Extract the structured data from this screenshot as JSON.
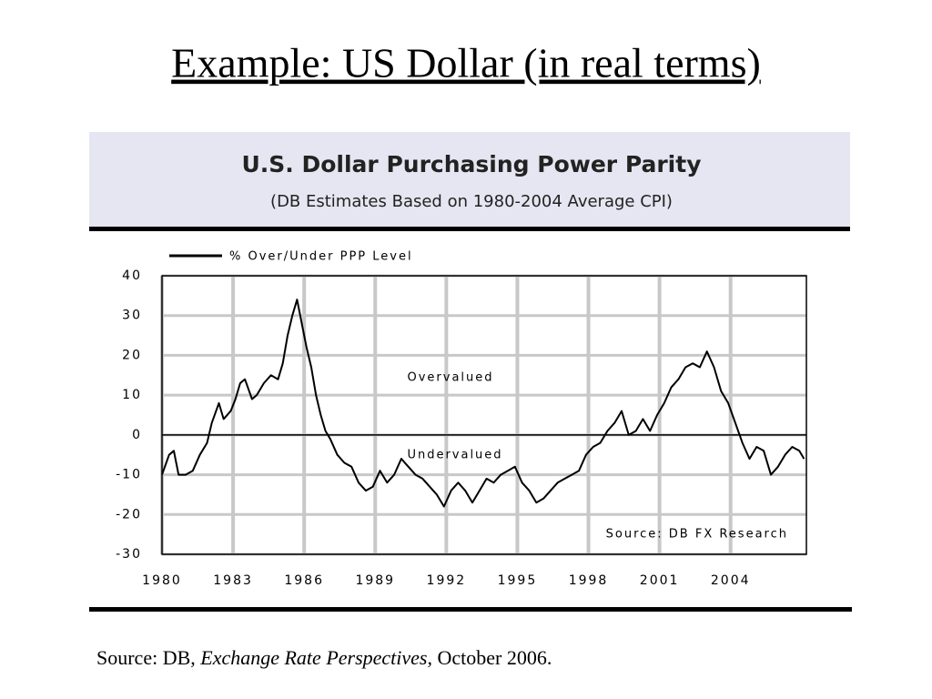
{
  "slide_title": "Example: US Dollar (in real terms)",
  "chart_data": {
    "type": "line",
    "title": "U.S. Dollar Purchasing Power Parity",
    "subtitle": "(DB Estimates Based on 1980-2004 Average CPI)",
    "annotations": [
      "Overvalued",
      "Undervalued",
      "Source: DB FX Research"
    ],
    "x": [
      1980.0,
      1980.3,
      1980.5,
      1980.7,
      1981.0,
      1981.3,
      1981.6,
      1981.9,
      1982.1,
      1982.4,
      1982.6,
      1982.9,
      1983.1,
      1983.3,
      1983.5,
      1983.8,
      1984.0,
      1984.3,
      1984.6,
      1984.9,
      1985.1,
      1985.3,
      1985.5,
      1985.7,
      1985.9,
      1986.1,
      1986.3,
      1986.5,
      1986.7,
      1986.9,
      1987.1,
      1987.4,
      1987.7,
      1988.0,
      1988.3,
      1988.6,
      1988.9,
      1989.2,
      1989.5,
      1989.8,
      1990.1,
      1990.4,
      1990.7,
      1991.0,
      1991.3,
      1991.6,
      1991.9,
      1992.2,
      1992.5,
      1992.8,
      1993.1,
      1993.4,
      1993.7,
      1994.0,
      1994.3,
      1994.6,
      1994.9,
      1995.2,
      1995.5,
      1995.8,
      1996.1,
      1996.4,
      1996.7,
      1997.0,
      1997.3,
      1997.6,
      1997.9,
      1998.2,
      1998.5,
      1998.8,
      1999.1,
      1999.4,
      1999.7,
      2000.0,
      2000.3,
      2000.6,
      2000.9,
      2001.2,
      2001.5,
      2001.8,
      2002.1,
      2002.4,
      2002.7,
      2003.0,
      2003.3,
      2003.6,
      2003.9,
      2004.2,
      2004.5,
      2004.8,
      2005.1,
      2005.4,
      2005.7,
      2006.0,
      2006.3,
      2006.6,
      2006.9,
      2007.1
    ],
    "series": [
      {
        "name": "% Over/Under PPP Level",
        "color": "#000000",
        "values": [
          -10,
          -5,
          -4,
          -10,
          -10,
          -9,
          -5,
          -2,
          3,
          8,
          4,
          6,
          9,
          13,
          14,
          9,
          10,
          13,
          15,
          14,
          18,
          25,
          30,
          34,
          28,
          22,
          17,
          10,
          5,
          1,
          -1,
          -5,
          -7,
          -8,
          -12,
          -14,
          -13,
          -9,
          -12,
          -10,
          -6,
          -8,
          -10,
          -11,
          -13,
          -15,
          -18,
          -14,
          -12,
          -14,
          -17,
          -14,
          -11,
          -12,
          -10,
          -9,
          -8,
          -12,
          -14,
          -17,
          -16,
          -14,
          -12,
          -11,
          -10,
          -9,
          -5,
          -3,
          -2,
          1,
          3,
          6,
          0,
          1,
          4,
          1,
          5,
          8,
          12,
          14,
          17,
          18,
          17,
          21,
          17,
          11,
          8,
          3,
          -2,
          -6,
          -3,
          -4,
          -10,
          -8,
          -5,
          -3,
          -4,
          -6
        ]
      }
    ],
    "xlim": [
      1980,
      2007.2
    ],
    "xticks": [
      1980,
      1983,
      1986,
      1989,
      1992,
      1995,
      1998,
      2001,
      2004
    ],
    "ylim": [
      -30,
      40
    ],
    "yticks": [
      -30,
      -20,
      -10,
      0,
      10,
      20,
      30,
      40
    ],
    "grid": true
  },
  "source": [
    "Source: DB, ",
    "Exchange Rate Perspectives",
    ", October 2006."
  ]
}
